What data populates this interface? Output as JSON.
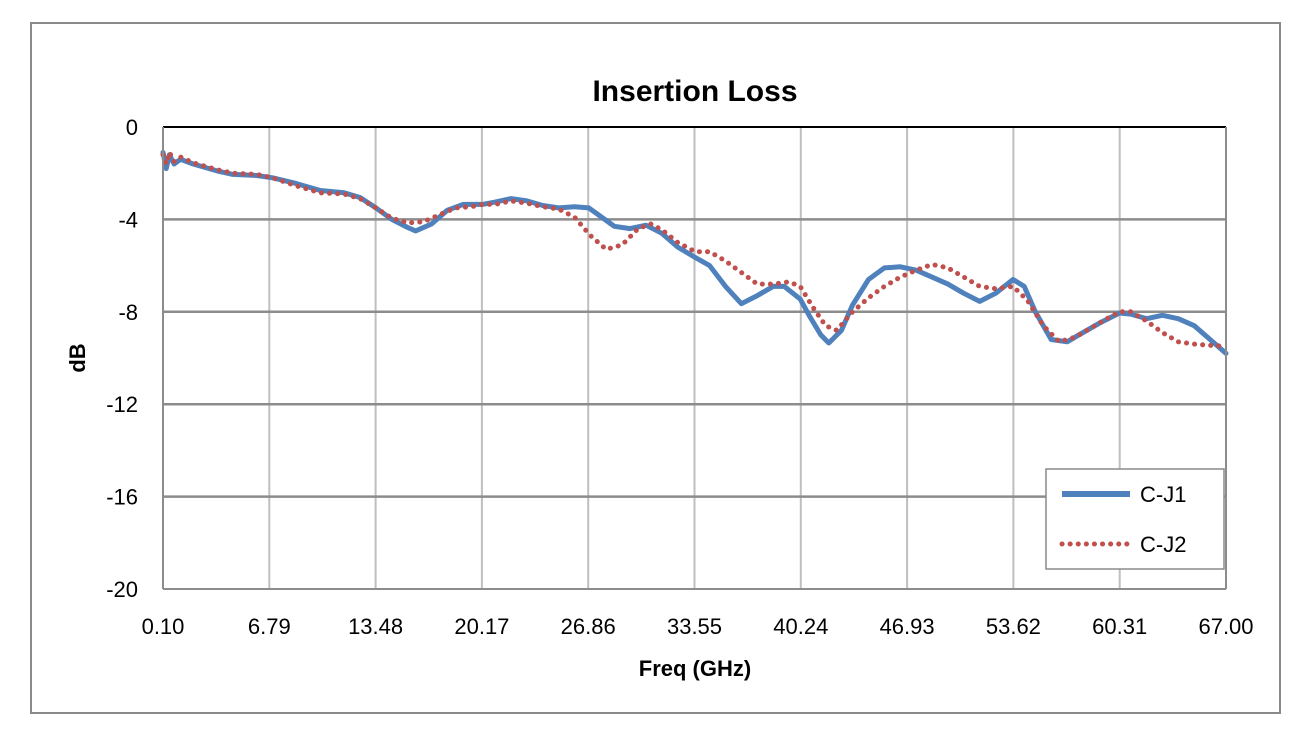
{
  "chart_data": {
    "type": "line",
    "title": "Insertion Loss",
    "xlabel": "Freq (GHz)",
    "ylabel": "dB",
    "xlim": [
      0.1,
      67.0
    ],
    "ylim": [
      -20,
      0
    ],
    "x_ticks": [
      "0.10",
      "6.79",
      "13.48",
      "20.17",
      "26.86",
      "33.55",
      "40.24",
      "46.93",
      "53.62",
      "60.31",
      "67.00"
    ],
    "y_ticks": [
      "0",
      "-4",
      "-8",
      "-12",
      "-16",
      "-20"
    ],
    "grid": true,
    "legend_position": "bottom-right",
    "series": [
      {
        "name": "C-J1",
        "color": "#4f81bd",
        "style": "solid",
        "points": [
          [
            0.1,
            -1.1
          ],
          [
            0.3,
            -1.8
          ],
          [
            0.5,
            -1.2
          ],
          [
            0.8,
            -1.6
          ],
          [
            1.2,
            -1.4
          ],
          [
            2.0,
            -1.6
          ],
          [
            3.5,
            -1.9
          ],
          [
            4.5,
            -2.05
          ],
          [
            6.0,
            -2.1
          ],
          [
            7.0,
            -2.2
          ],
          [
            8.5,
            -2.45
          ],
          [
            10.0,
            -2.75
          ],
          [
            11.5,
            -2.85
          ],
          [
            12.5,
            -3.05
          ],
          [
            13.5,
            -3.5
          ],
          [
            14.5,
            -4.0
          ],
          [
            15.5,
            -4.35
          ],
          [
            16.0,
            -4.5
          ],
          [
            17.0,
            -4.2
          ],
          [
            18.0,
            -3.6
          ],
          [
            19.0,
            -3.35
          ],
          [
            20.2,
            -3.35
          ],
          [
            21.0,
            -3.25
          ],
          [
            22.0,
            -3.1
          ],
          [
            23.0,
            -3.2
          ],
          [
            24.0,
            -3.4
          ],
          [
            25.0,
            -3.5
          ],
          [
            26.0,
            -3.45
          ],
          [
            26.9,
            -3.5
          ],
          [
            27.5,
            -3.8
          ],
          [
            28.5,
            -4.3
          ],
          [
            29.5,
            -4.4
          ],
          [
            30.5,
            -4.25
          ],
          [
            31.5,
            -4.6
          ],
          [
            32.5,
            -5.2
          ],
          [
            33.6,
            -5.65
          ],
          [
            34.5,
            -6.0
          ],
          [
            35.5,
            -6.9
          ],
          [
            36.5,
            -7.65
          ],
          [
            37.5,
            -7.3
          ],
          [
            38.5,
            -6.9
          ],
          [
            39.2,
            -6.9
          ],
          [
            40.2,
            -7.45
          ],
          [
            40.8,
            -8.2
          ],
          [
            41.5,
            -9.0
          ],
          [
            42.0,
            -9.35
          ],
          [
            42.8,
            -8.8
          ],
          [
            43.5,
            -7.7
          ],
          [
            44.5,
            -6.6
          ],
          [
            45.5,
            -6.1
          ],
          [
            46.5,
            -6.05
          ],
          [
            47.5,
            -6.2
          ],
          [
            48.5,
            -6.5
          ],
          [
            49.5,
            -6.8
          ],
          [
            50.5,
            -7.2
          ],
          [
            51.5,
            -7.55
          ],
          [
            52.5,
            -7.2
          ],
          [
            53.6,
            -6.6
          ],
          [
            54.3,
            -6.9
          ],
          [
            55.0,
            -8.0
          ],
          [
            56.0,
            -9.2
          ],
          [
            57.0,
            -9.3
          ],
          [
            58.0,
            -8.9
          ],
          [
            59.0,
            -8.5
          ],
          [
            60.3,
            -8.05
          ],
          [
            61.0,
            -8.1
          ],
          [
            62.0,
            -8.3
          ],
          [
            63.0,
            -8.15
          ],
          [
            64.0,
            -8.3
          ],
          [
            65.0,
            -8.6
          ],
          [
            66.0,
            -9.2
          ],
          [
            67.0,
            -9.8
          ]
        ]
      },
      {
        "name": "C-J2",
        "color": "#c0504d",
        "style": "dotted",
        "points": [
          [
            0.1,
            -1.2
          ],
          [
            0.3,
            -1.6
          ],
          [
            0.5,
            -1.1
          ],
          [
            0.8,
            -1.5
          ],
          [
            1.2,
            -1.3
          ],
          [
            2.0,
            -1.55
          ],
          [
            3.5,
            -1.85
          ],
          [
            4.5,
            -2.0
          ],
          [
            6.0,
            -2.05
          ],
          [
            7.0,
            -2.2
          ],
          [
            8.5,
            -2.55
          ],
          [
            10.0,
            -2.85
          ],
          [
            11.5,
            -2.9
          ],
          [
            12.5,
            -3.1
          ],
          [
            13.5,
            -3.5
          ],
          [
            14.5,
            -3.95
          ],
          [
            15.5,
            -4.15
          ],
          [
            16.5,
            -4.1
          ],
          [
            17.5,
            -3.8
          ],
          [
            18.5,
            -3.5
          ],
          [
            19.5,
            -3.45
          ],
          [
            20.2,
            -3.35
          ],
          [
            21.0,
            -3.35
          ],
          [
            22.0,
            -3.2
          ],
          [
            23.0,
            -3.3
          ],
          [
            24.0,
            -3.45
          ],
          [
            25.0,
            -3.55
          ],
          [
            26.0,
            -3.9
          ],
          [
            27.0,
            -4.7
          ],
          [
            28.0,
            -5.3
          ],
          [
            29.0,
            -5.1
          ],
          [
            30.0,
            -4.4
          ],
          [
            30.8,
            -4.2
          ],
          [
            31.5,
            -4.45
          ],
          [
            32.5,
            -5.0
          ],
          [
            33.6,
            -5.4
          ],
          [
            34.5,
            -5.4
          ],
          [
            35.5,
            -5.8
          ],
          [
            36.5,
            -6.3
          ],
          [
            37.5,
            -6.8
          ],
          [
            38.5,
            -6.8
          ],
          [
            39.5,
            -6.7
          ],
          [
            40.2,
            -6.9
          ],
          [
            41.0,
            -7.8
          ],
          [
            41.8,
            -8.6
          ],
          [
            42.5,
            -8.8
          ],
          [
            43.5,
            -8.0
          ],
          [
            44.5,
            -7.4
          ],
          [
            45.5,
            -6.9
          ],
          [
            46.5,
            -6.5
          ],
          [
            47.5,
            -6.2
          ],
          [
            48.5,
            -5.95
          ],
          [
            49.5,
            -6.1
          ],
          [
            50.5,
            -6.5
          ],
          [
            51.5,
            -6.9
          ],
          [
            52.5,
            -7.0
          ],
          [
            53.6,
            -6.9
          ],
          [
            54.5,
            -7.5
          ],
          [
            55.5,
            -8.6
          ],
          [
            56.5,
            -9.3
          ],
          [
            57.5,
            -9.1
          ],
          [
            58.5,
            -8.7
          ],
          [
            59.5,
            -8.3
          ],
          [
            60.3,
            -8.0
          ],
          [
            61.0,
            -8.0
          ],
          [
            62.0,
            -8.4
          ],
          [
            63.0,
            -8.9
          ],
          [
            64.0,
            -9.3
          ],
          [
            65.0,
            -9.4
          ],
          [
            66.0,
            -9.45
          ],
          [
            67.0,
            -9.5
          ]
        ]
      }
    ]
  }
}
